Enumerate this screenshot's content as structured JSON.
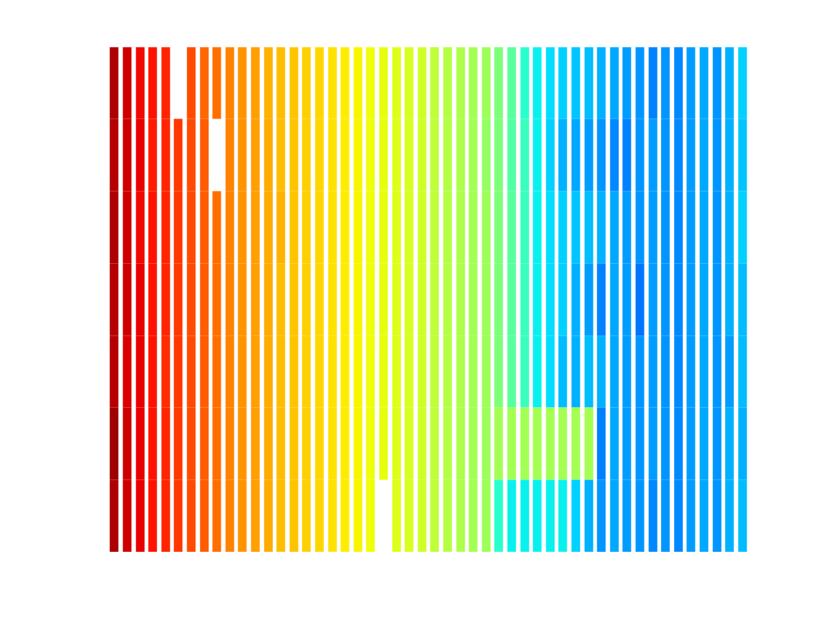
{
  "chart_data": {
    "type": "lines",
    "tick_labels": false,
    "grid": false,
    "xlim": [
      0,
      1
    ],
    "ylim": [
      0,
      7
    ],
    "color_range": [
      0,
      1
    ],
    "x": [
      0.01,
      0.03,
      0.05,
      0.07,
      0.09,
      0.11,
      0.13,
      0.15,
      0.17,
      0.19,
      0.21,
      0.23,
      0.25,
      0.27,
      0.29,
      0.31,
      0.33,
      0.35,
      0.37,
      0.39,
      0.41,
      0.43,
      0.45,
      0.47,
      0.49,
      0.51,
      0.53,
      0.55,
      0.57,
      0.59,
      0.61,
      0.63,
      0.65,
      0.67,
      0.69,
      0.71,
      0.73,
      0.75,
      0.77,
      0.79,
      0.81,
      0.83,
      0.85,
      0.87,
      0.89,
      0.91,
      0.93,
      0.95,
      0.97,
      0.99
    ],
    "rows": [
      [
        0.96,
        0.93,
        0.9,
        0.89,
        0.87,
        null,
        0.83,
        0.8,
        0.79,
        0.77,
        0.75,
        0.74,
        0.72,
        0.71,
        0.7,
        0.69,
        0.68,
        0.67,
        0.66,
        0.65,
        0.64,
        0.63,
        0.62,
        0.61,
        0.6,
        0.58,
        0.57,
        0.56,
        0.55,
        0.54,
        0.5,
        0.46,
        0.4,
        0.36,
        0.34,
        0.33,
        0.32,
        0.31,
        0.3,
        0.29,
        0.28,
        0.27,
        0.25,
        0.27,
        0.26,
        0.28,
        0.29,
        0.27,
        0.3,
        0.33
      ],
      [
        0.95,
        0.93,
        0.91,
        0.88,
        0.87,
        0.85,
        0.83,
        0.81,
        null,
        0.77,
        0.75,
        0.74,
        0.73,
        0.71,
        0.7,
        0.69,
        0.68,
        0.67,
        0.66,
        0.65,
        0.64,
        0.63,
        0.62,
        0.61,
        0.6,
        0.58,
        0.57,
        0.56,
        0.55,
        0.53,
        0.5,
        0.45,
        0.42,
        0.36,
        0.33,
        0.3,
        0.29,
        0.28,
        0.27,
        0.26,
        0.25,
        0.27,
        0.28,
        0.27,
        0.26,
        0.28,
        0.29,
        0.27,
        0.3,
        0.32
      ],
      [
        0.96,
        0.93,
        0.9,
        0.89,
        0.87,
        0.85,
        0.83,
        0.81,
        0.79,
        0.77,
        0.75,
        0.74,
        0.73,
        0.72,
        0.7,
        0.69,
        0.68,
        0.67,
        0.66,
        0.65,
        0.64,
        0.63,
        0.62,
        0.61,
        0.6,
        0.58,
        0.57,
        0.56,
        0.55,
        0.54,
        0.5,
        0.46,
        0.42,
        0.36,
        0.34,
        0.33,
        0.32,
        0.31,
        0.3,
        0.29,
        0.28,
        0.27,
        0.28,
        0.27,
        0.26,
        0.28,
        0.29,
        0.27,
        0.3,
        0.33
      ],
      [
        0.95,
        0.93,
        0.91,
        0.89,
        0.87,
        0.85,
        0.83,
        0.81,
        0.79,
        0.77,
        0.75,
        0.74,
        0.73,
        0.71,
        0.7,
        0.69,
        0.68,
        0.67,
        0.66,
        0.65,
        0.64,
        0.63,
        0.62,
        0.61,
        0.6,
        0.58,
        0.57,
        0.56,
        0.55,
        0.54,
        0.5,
        0.46,
        0.42,
        0.36,
        0.34,
        0.33,
        0.3,
        0.28,
        0.25,
        0.29,
        0.28,
        0.24,
        0.28,
        0.27,
        0.26,
        0.28,
        0.29,
        0.27,
        0.3,
        0.31
      ],
      [
        0.95,
        0.92,
        0.91,
        0.89,
        0.86,
        0.85,
        0.83,
        0.81,
        0.79,
        0.77,
        0.75,
        0.74,
        0.73,
        0.71,
        0.7,
        0.69,
        0.68,
        0.67,
        0.66,
        0.65,
        0.64,
        0.63,
        0.62,
        0.61,
        0.6,
        0.58,
        0.57,
        0.56,
        0.55,
        0.54,
        0.5,
        0.46,
        0.42,
        0.36,
        0.34,
        0.31,
        0.3,
        0.31,
        0.3,
        0.29,
        0.28,
        0.27,
        0.28,
        0.27,
        0.26,
        0.28,
        0.29,
        0.27,
        0.28,
        0.31
      ],
      [
        0.97,
        0.93,
        0.91,
        0.89,
        0.87,
        0.85,
        0.83,
        0.81,
        0.79,
        0.77,
        0.75,
        0.74,
        0.73,
        0.71,
        0.7,
        0.69,
        0.68,
        0.67,
        0.66,
        0.65,
        0.64,
        0.63,
        0.62,
        0.61,
        0.6,
        0.58,
        0.57,
        0.56,
        0.55,
        0.54,
        0.55,
        0.55,
        0.55,
        0.55,
        0.55,
        0.55,
        0.55,
        0.55,
        0.25,
        0.29,
        0.28,
        0.27,
        0.28,
        0.27,
        0.26,
        0.28,
        0.29,
        0.27,
        0.3,
        0.3
      ],
      [
        0.96,
        0.93,
        0.91,
        0.89,
        0.87,
        0.85,
        0.83,
        0.81,
        0.79,
        0.77,
        0.75,
        0.74,
        0.73,
        0.71,
        0.7,
        0.69,
        0.68,
        0.67,
        0.66,
        0.65,
        0.64,
        null,
        0.62,
        0.61,
        0.6,
        0.58,
        0.57,
        0.56,
        0.55,
        0.54,
        0.4,
        0.36,
        0.36,
        0.36,
        0.36,
        0.36,
        0.33,
        0.3,
        0.27,
        0.29,
        0.28,
        0.27,
        0.26,
        0.27,
        0.26,
        0.28,
        0.29,
        0.27,
        0.3,
        0.31
      ]
    ]
  }
}
